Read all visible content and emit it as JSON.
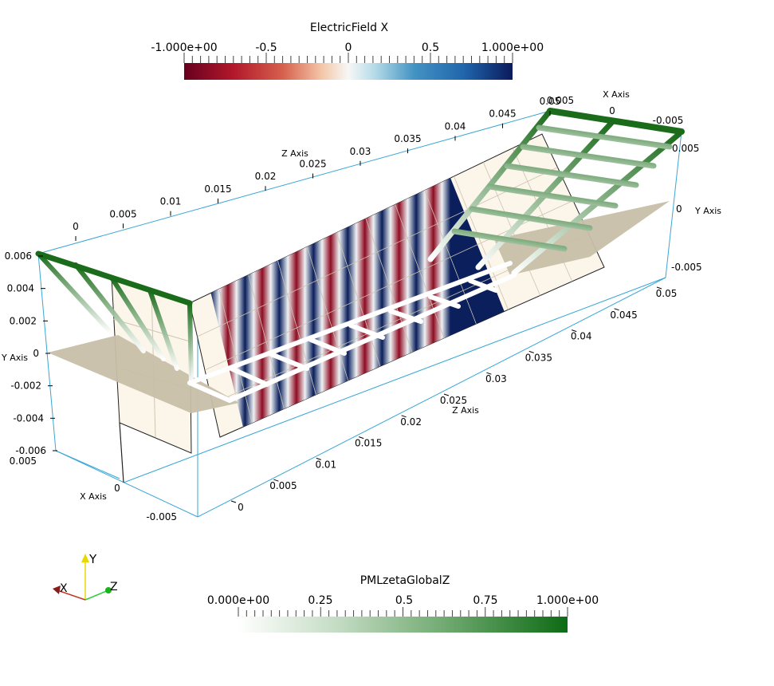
{
  "colorbars": {
    "top": {
      "title": "ElectricField X",
      "labels": [
        "-1.000e+00",
        "-0.5",
        "0",
        "0.5",
        "1.000e+00"
      ],
      "colormap": "cool-to-warm (blue-red)"
    },
    "bottom": {
      "title": "PMLzetaGlobalZ",
      "labels": [
        "0.000e+00",
        "0.25",
        "0.5",
        "0.75",
        "1.000e+00"
      ],
      "colormap": "white-to-green"
    }
  },
  "axes": {
    "z_axis_top": {
      "name": "Z Axis",
      "ticks": [
        "0",
        "0.005",
        "0.01",
        "0.015",
        "0.02",
        "0.025",
        "0.03",
        "0.035",
        "0.04",
        "0.045",
        "0.05"
      ]
    },
    "z_axis_bottom": {
      "name": "Z Axis",
      "ticks": [
        "0",
        "0.005",
        "0.01",
        "0.015",
        "0.02",
        "0.025",
        "0.03",
        "0.035",
        "0.04",
        "0.045",
        "0.05"
      ]
    },
    "x_axis_top": {
      "name": "X Axis",
      "ticks": [
        "0.005",
        "0",
        "-0.005"
      ]
    },
    "x_axis_left": {
      "name": "X Axis",
      "ticks": [
        "0.005",
        "0",
        "-0.005"
      ]
    },
    "y_axis_left": {
      "name": "Y Axis",
      "ticks": [
        "0.006",
        "0.004",
        "0.002",
        "0",
        "-0.002",
        "-0.004",
        "-0.006"
      ]
    },
    "y_axis_right": {
      "name": "Y Axis",
      "ticks": [
        "0.005",
        "0",
        "-0.005"
      ]
    }
  },
  "orientation": {
    "x": "X",
    "y": "Y",
    "z": "Z"
  },
  "colors": {
    "axis_line": "#3aa6d6",
    "field_red": "#67001f",
    "field_blue": "#053061",
    "pml_green": "#1a6b1a",
    "plane": "#c8bfa9",
    "panel": "#fbf5ea"
  }
}
